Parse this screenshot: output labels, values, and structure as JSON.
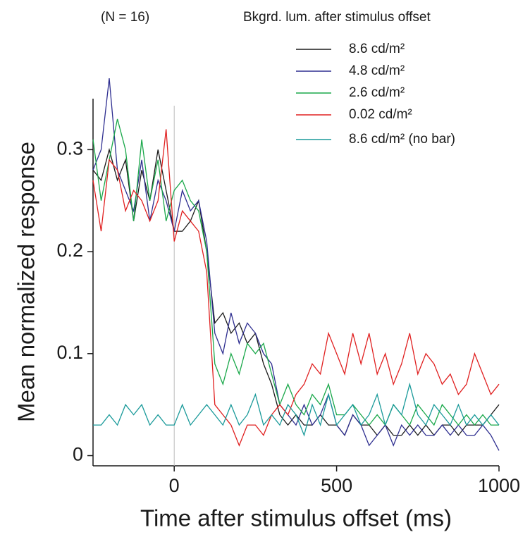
{
  "chart_data": {
    "type": "line",
    "annotation": "(N = 16)",
    "legend_title": "Bkgrd. lum. after stimulus offset",
    "xlabel": "Time after stimulus offset (ms)",
    "ylabel": "Mean normalized response",
    "xlim": [
      -250,
      1000
    ],
    "xticks": [
      0,
      500,
      1000
    ],
    "ylim": [
      -0.01,
      0.35
    ],
    "yticks": [
      0,
      0.1,
      0.2,
      0.3
    ],
    "vline": 0,
    "x": [
      -250,
      -225,
      -200,
      -175,
      -150,
      -125,
      -100,
      -75,
      -50,
      -25,
      0,
      25,
      50,
      75,
      100,
      125,
      150,
      175,
      200,
      225,
      250,
      275,
      300,
      325,
      350,
      375,
      400,
      425,
      450,
      475,
      500,
      525,
      550,
      575,
      600,
      625,
      650,
      675,
      700,
      725,
      750,
      775,
      800,
      825,
      850,
      875,
      900,
      925,
      950,
      975,
      1000
    ],
    "series": [
      {
        "name": "8.6 cd/m²",
        "color": "#1a1a1a",
        "values": [
          0.28,
          0.27,
          0.3,
          0.27,
          0.29,
          0.23,
          0.28,
          0.25,
          0.3,
          0.26,
          0.22,
          0.22,
          0.23,
          0.25,
          0.2,
          0.13,
          0.14,
          0.12,
          0.13,
          0.11,
          0.12,
          0.09,
          0.07,
          0.04,
          0.03,
          0.04,
          0.03,
          0.03,
          0.04,
          0.03,
          0.03,
          0.02,
          0.04,
          0.03,
          0.03,
          0.02,
          0.03,
          0.02,
          0.02,
          0.03,
          0.02,
          0.03,
          0.02,
          0.03,
          0.03,
          0.02,
          0.03,
          0.03,
          0.03,
          0.04,
          0.05
        ]
      },
      {
        "name": "4.8 cd/m²",
        "color": "#2e2e90",
        "values": [
          0.28,
          0.3,
          0.37,
          0.28,
          0.26,
          0.24,
          0.29,
          0.23,
          0.27,
          0.25,
          0.22,
          0.26,
          0.24,
          0.25,
          0.21,
          0.12,
          0.1,
          0.14,
          0.11,
          0.13,
          0.12,
          0.1,
          0.09,
          0.05,
          0.04,
          0.03,
          0.05,
          0.03,
          0.04,
          0.06,
          0.03,
          0.02,
          0.04,
          0.03,
          0.01,
          0.02,
          0.03,
          0.01,
          0.03,
          0.02,
          0.03,
          0.02,
          0.02,
          0.03,
          0.02,
          0.03,
          0.02,
          0.02,
          0.03,
          0.02,
          0.005
        ]
      },
      {
        "name": "2.6 cd/m²",
        "color": "#1aa84a",
        "values": [
          0.31,
          0.25,
          0.29,
          0.33,
          0.3,
          0.23,
          0.31,
          0.25,
          0.29,
          0.23,
          0.26,
          0.27,
          0.25,
          0.24,
          0.2,
          0.09,
          0.07,
          0.1,
          0.08,
          0.11,
          0.1,
          0.11,
          0.08,
          0.05,
          0.07,
          0.05,
          0.04,
          0.06,
          0.05,
          0.07,
          0.04,
          0.04,
          0.05,
          0.04,
          0.03,
          0.04,
          0.03,
          0.05,
          0.04,
          0.03,
          0.05,
          0.04,
          0.03,
          0.05,
          0.04,
          0.03,
          0.04,
          0.03,
          0.04,
          0.03,
          0.03
        ]
      },
      {
        "name": "0.02 cd/m²",
        "color": "#e02020",
        "values": [
          0.27,
          0.22,
          0.29,
          0.28,
          0.24,
          0.26,
          0.25,
          0.23,
          0.25,
          0.32,
          0.21,
          0.24,
          0.23,
          0.22,
          0.18,
          0.05,
          0.04,
          0.03,
          0.01,
          0.03,
          0.03,
          0.02,
          0.04,
          0.05,
          0.04,
          0.06,
          0.07,
          0.09,
          0.08,
          0.12,
          0.1,
          0.08,
          0.12,
          0.09,
          0.12,
          0.08,
          0.1,
          0.07,
          0.09,
          0.12,
          0.08,
          0.1,
          0.09,
          0.07,
          0.08,
          0.06,
          0.07,
          0.1,
          0.08,
          0.06,
          0.07
        ]
      },
      {
        "name": "8.6 cd/m² (no bar)",
        "color": "#1a9a9a",
        "values": [
          0.03,
          0.03,
          0.04,
          0.03,
          0.05,
          0.04,
          0.05,
          0.03,
          0.04,
          0.03,
          0.03,
          0.05,
          0.03,
          0.04,
          0.05,
          0.04,
          0.03,
          0.05,
          0.03,
          0.04,
          0.06,
          0.03,
          0.04,
          0.03,
          0.05,
          0.04,
          0.02,
          0.05,
          0.03,
          0.06,
          0.03,
          0.04,
          0.05,
          0.03,
          0.04,
          0.06,
          0.03,
          0.05,
          0.04,
          0.07,
          0.04,
          0.03,
          0.05,
          0.04,
          0.03,
          0.05,
          0.03,
          0.04,
          0.03,
          0.04,
          0.03
        ]
      }
    ]
  }
}
